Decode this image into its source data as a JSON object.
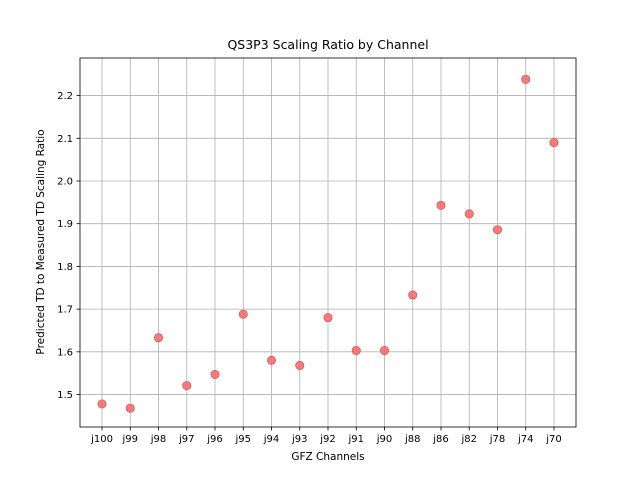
{
  "chart_data": {
    "type": "scatter",
    "title": "QS3P3 Scaling Ratio by Channel",
    "xlabel": "GFZ Channels",
    "ylabel": "Predicted TD to Measured TD Scaling Ratio",
    "categories": [
      "j100",
      "j99",
      "j98",
      "j97",
      "j96",
      "j95",
      "j94",
      "j93",
      "j92",
      "j91",
      "j90",
      "j88",
      "j86",
      "j82",
      "j78",
      "j74",
      "j70"
    ],
    "values": [
      1.478,
      1.468,
      1.633,
      1.521,
      1.547,
      1.688,
      1.58,
      1.568,
      1.68,
      1.603,
      1.603,
      1.733,
      1.943,
      1.923,
      1.886,
      2.238,
      2.09
    ],
    "ylim": [
      1.424,
      2.288
    ],
    "yticks": [
      "1.5",
      "1.6",
      "1.7",
      "1.8",
      "1.9",
      "2.0",
      "2.1",
      "2.2"
    ],
    "grid": true,
    "marker_color": "#f07070",
    "marker_edge_color": "#d94545",
    "grid_color": "#b0b0b0"
  }
}
